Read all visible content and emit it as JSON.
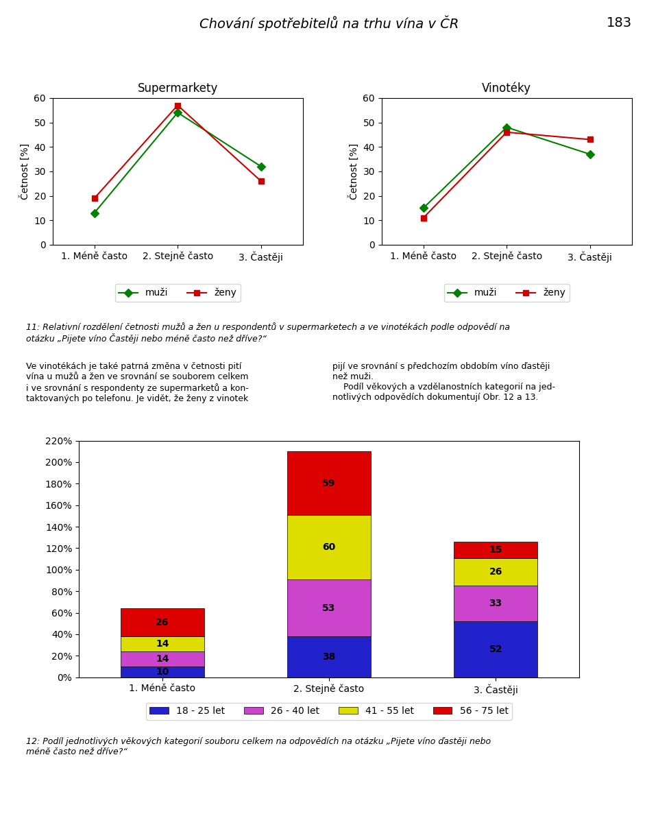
{
  "title": "Chování spotřebitelů na trhu vína v ČR",
  "page_number": "183",
  "captions": [
    "11: Relativní rozdělení četnosti mužů a žen u respondentů v supermarketech a ve vinotékách podle odpovědí na\notázku „Pijete víno Častěji nebo méně často než dříve?“",
    "12: Podíl jednotlivých věkových kategorií souboru celkem na odpovědích na otázku „Pijete víno ďastěji nebo\nméně často než dříve?“"
  ],
  "body": [
    "Ve vinotékách je také patrná změna v četnosti pití\nvína u mužů a žen ve srovnání se souborem celkem\ni ve srovnání s respondenty ze supermarketů a kon-\ntaktovaných po telefonu. Je vidět, že ženy z vinotek",
    "pijí ve srovnání s předchozím obdobím víno ďastěji\nnež muži.\n    Podíl věkových a vzdělanostních kategorií na jed-\nnotlivých odpovědích dokumentují Obr. 12 a 13."
  ],
  "chart_data": [
    {
      "type": "line",
      "title": "Supermarkety",
      "categories": [
        "1. Méně často",
        "2. Stejně často",
        "3. Častěji"
      ],
      "ylabel": "Četnost [%]",
      "ylim": [
        0,
        60
      ],
      "yticks": [
        0,
        10,
        20,
        30,
        40,
        50,
        60
      ],
      "legend": "lower center",
      "series": [
        {
          "name": "muži",
          "color": "#008000",
          "marker": "diamond",
          "values": [
            13,
            54,
            32
          ]
        },
        {
          "name": "ženy",
          "color": "#cc0000",
          "marker": "square",
          "values": [
            19,
            57,
            26
          ]
        }
      ]
    },
    {
      "type": "line",
      "title": "Vinotéky",
      "categories": [
        "1. Méně často",
        "2. Stejně často",
        "3. Častěji"
      ],
      "ylabel": "Četnost [%]",
      "ylim": [
        0,
        60
      ],
      "yticks": [
        0,
        10,
        20,
        30,
        40,
        50,
        60
      ],
      "legend": "lower center",
      "series": [
        {
          "name": "muži",
          "color": "#008000",
          "marker": "diamond",
          "values": [
            15,
            48,
            37
          ]
        },
        {
          "name": "ženy",
          "color": "#cc0000",
          "marker": "square",
          "values": [
            11,
            46,
            43
          ]
        }
      ]
    },
    {
      "type": "bar",
      "stacked": true,
      "data_labels": true,
      "categories": [
        "1. Méně často",
        "2. Stejně často",
        "3. Častěji"
      ],
      "ylim": [
        0,
        220
      ],
      "yticks": [
        {
          "value": 0,
          "label": "0%"
        },
        {
          "value": 20,
          "label": "20%"
        },
        {
          "value": 40,
          "label": "40%"
        },
        {
          "value": 60,
          "label": "60%"
        },
        {
          "value": 80,
          "label": "80%"
        },
        {
          "value": 100,
          "label": "100%"
        },
        {
          "value": 120,
          "label": "120%"
        },
        {
          "value": 140,
          "label": "140%"
        },
        {
          "value": 160,
          "label": "160%"
        },
        {
          "value": 180,
          "label": "180%"
        },
        {
          "value": 200,
          "label": "200%"
        },
        {
          "value": 220,
          "label": "220%"
        }
      ],
      "legend": "lower center",
      "series": [
        {
          "name": "18 - 25 let",
          "color": "#2222cc",
          "values": [
            10,
            38,
            52
          ]
        },
        {
          "name": "26 - 40 let",
          "color": "#cc44cc",
          "values": [
            14,
            53,
            33
          ]
        },
        {
          "name": "41 - 55 let",
          "color": "#dddd00",
          "values": [
            14,
            60,
            26
          ]
        },
        {
          "name": "56 - 75 let",
          "color": "#dd0000",
          "values": [
            26,
            59,
            15
          ]
        }
      ]
    }
  ]
}
